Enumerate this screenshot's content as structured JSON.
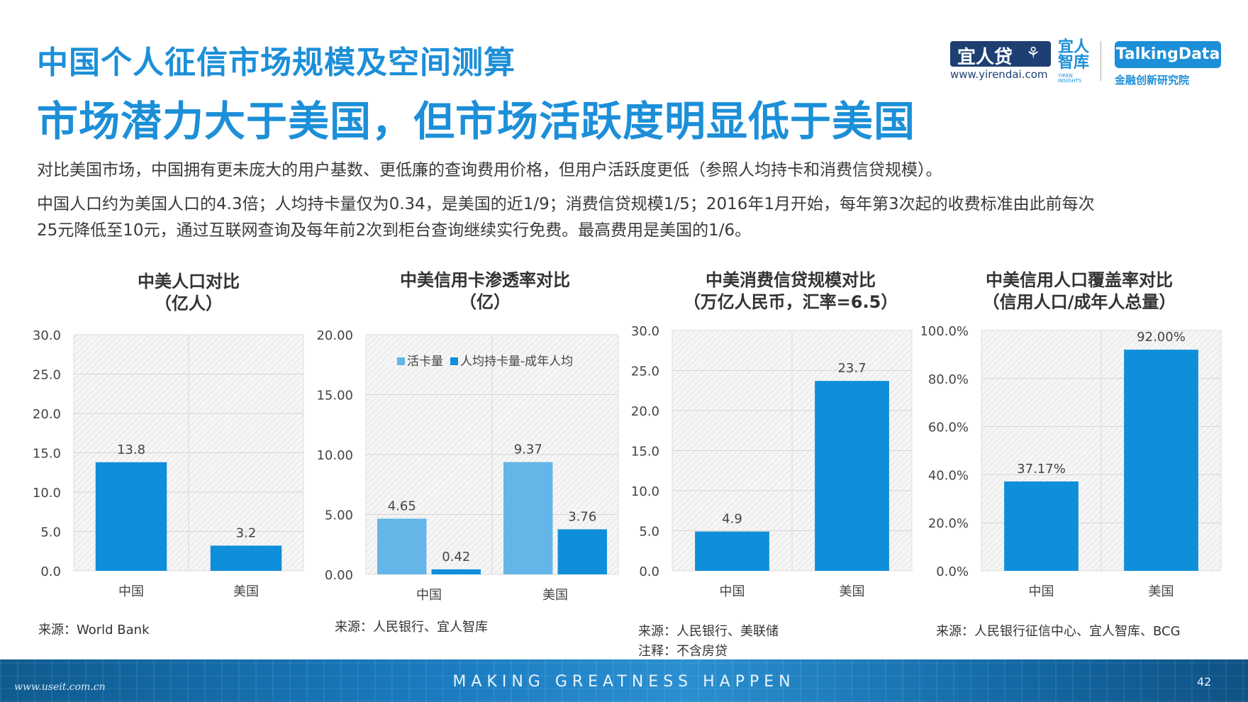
{
  "header": {
    "title": "中国个人征信市场规模及空间测算",
    "headline": "市场潜力大于美国，但市场活跃度明显低于美国"
  },
  "logos": {
    "yirendai": "宜人贷",
    "yirendai_url": "www.yirendai.com",
    "yiren_insights": "宜人智库",
    "yiren_insights_sub": "YIREN INSIGHTS",
    "talkingdata": "TalkingData",
    "talkingdata_sub": "金融创新研究院"
  },
  "body": {
    "para1": "对比美国市场，中国拥有更未庞大的用户基数、更低廉的查询费用价格，但用户活跃度更低（参照人均持卡和消费信贷规模）。",
    "para2_line1": "中国人口约为美国人口的4.3倍；人均持卡量仅为0.34，是美国的近1/9；消费信贷规模1/5；2016年1月开始，每年第3次起的收费标准由此前每次",
    "para2_line2": "25元降低至10元，通过互联网查询及每年前2次到柜台查询继续实行免费。最高费用是美国的1/6。"
  },
  "colors": {
    "primary": "#0f8fd9",
    "secondary": "#64b6e8",
    "title": "#1c8fd8"
  },
  "chart_data": [
    {
      "type": "bar",
      "title_line1": "中美人口对比",
      "title_line2": "（亿人）",
      "categories": [
        "中国",
        "美国"
      ],
      "values": [
        13.8,
        3.2
      ],
      "value_labels": [
        "13.8",
        "3.2"
      ],
      "ylim": [
        0,
        30
      ],
      "yticks": [
        "0.0",
        "5.0",
        "10.0",
        "15.0",
        "20.0",
        "25.0",
        "30.0"
      ],
      "grid": true,
      "source": "来源：World Bank"
    },
    {
      "type": "bar",
      "title_line1": "中美信用卡渗透率对比",
      "title_line2": "（亿）",
      "categories": [
        "中国",
        "美国"
      ],
      "series": [
        {
          "name": "活卡量",
          "values": [
            4.65,
            9.37
          ],
          "value_labels": [
            "4.65",
            "9.37"
          ]
        },
        {
          "name": "人均持卡量-成年人均",
          "values": [
            0.42,
            3.76
          ],
          "value_labels": [
            "0.42",
            "3.76"
          ]
        }
      ],
      "ylim": [
        0,
        20
      ],
      "yticks": [
        "0.00",
        "5.00",
        "10.00",
        "15.00",
        "20.00"
      ],
      "legend_position": "top",
      "grid": true,
      "source": "来源：人民银行、宜人智库"
    },
    {
      "type": "bar",
      "title_line1": "中美消费信贷规模对比",
      "title_line2": "（万亿人民币，汇率=6.5）",
      "categories": [
        "中国",
        "美国"
      ],
      "values": [
        4.9,
        23.7
      ],
      "value_labels": [
        "4.9",
        "23.7"
      ],
      "ylim": [
        0,
        30
      ],
      "yticks": [
        "0.0",
        "5.0",
        "10.0",
        "15.0",
        "20.0",
        "25.0",
        "30.0"
      ],
      "grid": true,
      "source": "来源：人民银行、美联储",
      "note": "注释：不含房贷"
    },
    {
      "type": "bar",
      "title_line1": "中美信用人口覆盖率对比",
      "title_line2": "（信用人口/成年人总量）",
      "categories": [
        "中国",
        "美国"
      ],
      "values": [
        37.17,
        92.0
      ],
      "value_labels": [
        "37.17%",
        "92.00%"
      ],
      "ylim": [
        0,
        100
      ],
      "yticks": [
        "0.0%",
        "20.0%",
        "40.0%",
        "60.0%",
        "80.0%",
        "100.0%"
      ],
      "grid": true,
      "source": "来源：人民银行征信中心、宜人智库、BCG"
    }
  ],
  "footer": {
    "tagline": "MAKING GREATNESS HAPPEN",
    "page_number": "42",
    "watermark": "www.useit.com.cn"
  }
}
